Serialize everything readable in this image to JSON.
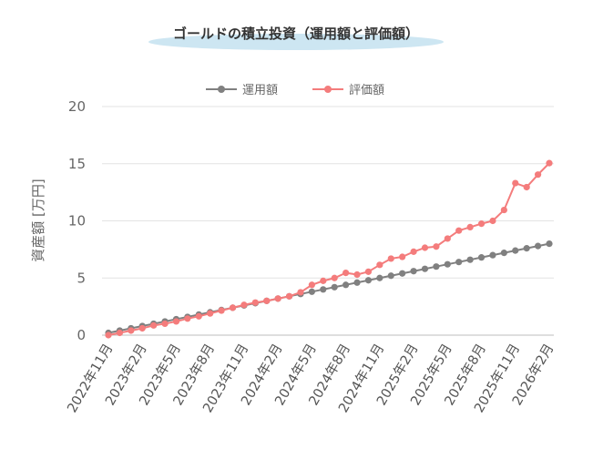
{
  "chart_data": {
    "type": "line",
    "title": "ゴールドの積立投資（運用額と評価額）",
    "ylabel": "資産額 [万円]",
    "xlabel": "",
    "ylim": [
      0,
      20
    ],
    "yticks": [
      "0",
      "5",
      "10",
      "15",
      "20"
    ],
    "grid": true,
    "legend_position": "top-center",
    "x": [
      "2022年11月",
      "2022年12月",
      "2023年1月",
      "2023年2月",
      "2023年3月",
      "2023年4月",
      "2023年5月",
      "2023年6月",
      "2023年7月",
      "2023年8月",
      "2023年9月",
      "2023年10月",
      "2023年11月",
      "2023年12月",
      "2024年1月",
      "2024年2月",
      "2024年3月",
      "2024年4月",
      "2024年5月",
      "2024年6月",
      "2024年7月",
      "2024年8月",
      "2024年9月",
      "2024年10月",
      "2024年11月",
      "2024年12月",
      "2025年1月",
      "2025年2月",
      "2025年3月",
      "2025年4月",
      "2025年5月",
      "2025年6月",
      "2025年7月",
      "2025年8月",
      "2025年9月",
      "2025年10月",
      "2025年11月",
      "2025年12月",
      "2026年1月",
      "2026年2月"
    ],
    "xtick_labels": [
      "2022年11月",
      "2023年2月",
      "2023年5月",
      "2023年8月",
      "2023年11月",
      "2024年2月",
      "2024年5月",
      "2024年8月",
      "2024年11月",
      "2025年2月",
      "2025年5月",
      "2025年8月",
      "2025年11月",
      "2026年2月"
    ],
    "series": [
      {
        "name": "運用額",
        "color": "#808080",
        "values": [
          0.2,
          0.4,
          0.6,
          0.8,
          1.0,
          1.2,
          1.4,
          1.6,
          1.8,
          2.0,
          2.2,
          2.4,
          2.6,
          2.8,
          3.0,
          3.2,
          3.4,
          3.6,
          3.8,
          4.0,
          4.2,
          4.4,
          4.6,
          4.8,
          5.0,
          5.2,
          5.4,
          5.6,
          5.8,
          6.0,
          6.2,
          6.4,
          6.6,
          6.8,
          7.0,
          7.2,
          7.4,
          7.6,
          7.8,
          8.0
        ]
      },
      {
        "name": "評価額",
        "color": "#F47C7C",
        "values": [
          0.0,
          0.2,
          0.4,
          0.6,
          0.85,
          1.0,
          1.2,
          1.45,
          1.65,
          1.9,
          2.15,
          2.4,
          2.65,
          2.85,
          3.0,
          3.2,
          3.4,
          3.75,
          4.4,
          4.75,
          5.0,
          5.45,
          5.3,
          5.55,
          6.15,
          6.7,
          6.85,
          7.3,
          7.65,
          7.75,
          8.45,
          9.15,
          9.45,
          9.75,
          10.0,
          10.95,
          13.3,
          12.95,
          14.05,
          15.05
        ]
      }
    ]
  }
}
